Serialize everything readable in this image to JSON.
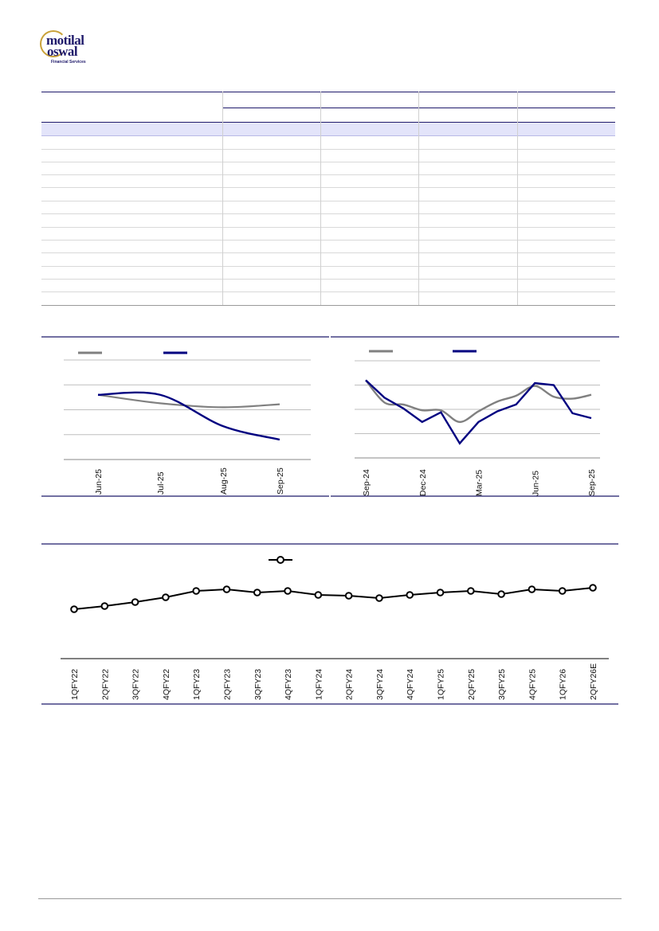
{
  "logo": {
    "line1": "motilal",
    "line2": "oswal",
    "tagline": "Financial Services"
  },
  "colors": {
    "navy": "#000080",
    "grey": "#808080",
    "header_fill": "#e3e4fa",
    "black": "#000000"
  },
  "chart_left": {
    "type": "line",
    "x_ticks": [
      "Jun-25",
      "Jul-25",
      "Aug-25",
      "Sep-25"
    ],
    "series": [
      {
        "color": "#808080",
        "values": [
          65.0,
          56.5,
          52.5,
          55.5
        ]
      },
      {
        "color": "#000080",
        "values": [
          65.0,
          65.0,
          33.5,
          20.0
        ]
      }
    ],
    "ylim": [
      0,
      100
    ],
    "grid": true
  },
  "chart_right": {
    "type": "line",
    "x_ticks": [
      "Sep-24",
      "Dec-24",
      "Mar-25",
      "Jun-25",
      "Sep-25"
    ],
    "series": [
      {
        "color": "#808080",
        "values": [
          80,
          57,
          55,
          49,
          49,
          37,
          48,
          58,
          64,
          74,
          63,
          61,
          65
        ]
      },
      {
        "color": "#000080",
        "values": [
          80,
          62,
          51,
          37,
          47,
          15,
          37,
          48,
          55,
          77,
          75,
          46,
          41
        ]
      }
    ],
    "ylim": [
      0,
      100
    ],
    "grid": true
  },
  "chart_bottom": {
    "type": "line",
    "categories": [
      "1QFY22",
      "2QFY22",
      "3QFY22",
      "4QFY22",
      "1QFY23",
      "2QFY23",
      "3QFY23",
      "4QFY23",
      "1QFY24",
      "2QFY24",
      "3QFY24",
      "4QFY24",
      "1QFY25",
      "2QFY25",
      "3QFY25",
      "4QFY25",
      "1QFY26",
      "2QFY26E"
    ],
    "series": [
      {
        "color": "#000000",
        "values": [
          22,
          26,
          31,
          37,
          45,
          47,
          43,
          45,
          40,
          39,
          36,
          40,
          43,
          45,
          41,
          47,
          45,
          49
        ]
      }
    ],
    "ylim": [
      -40,
      80
    ],
    "marker": "circle"
  }
}
